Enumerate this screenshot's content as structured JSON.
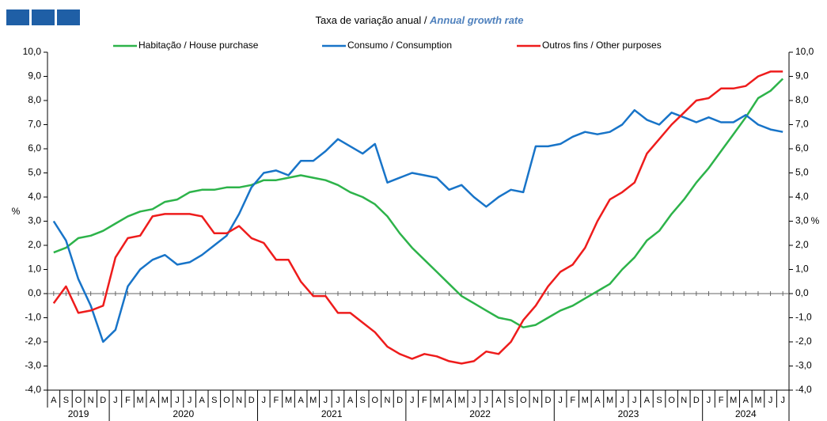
{
  "chart_data": {
    "type": "line",
    "title": "Taxa de variação anual / ",
    "title_en": "Annual growth rate",
    "ylabel": "%",
    "categories": [
      "A",
      "S",
      "O",
      "N",
      "D",
      "J",
      "F",
      "M",
      "A",
      "M",
      "J",
      "J",
      "A",
      "S",
      "O",
      "N",
      "D",
      "J",
      "F",
      "M",
      "A",
      "M",
      "J",
      "J",
      "A",
      "S",
      "O",
      "N",
      "D",
      "J",
      "F",
      "M",
      "A",
      "M",
      "J",
      "J",
      "A",
      "S",
      "O",
      "N",
      "D",
      "J",
      "F",
      "M",
      "A",
      "M",
      "J",
      "J",
      "A",
      "S",
      "O",
      "N",
      "D",
      "J",
      "F",
      "M",
      "A",
      "M",
      "J",
      "J"
    ],
    "years": [
      "2019",
      "2020",
      "2021",
      "2022",
      "2023",
      "2024"
    ],
    "ylim": [
      -4,
      10
    ],
    "yticks": [
      {
        "value": -4,
        "label": "-4,0"
      },
      {
        "value": -3,
        "label": "-3,0"
      },
      {
        "value": -2,
        "label": "-2,0"
      },
      {
        "value": -1,
        "label": "-1,0"
      },
      {
        "value": 0,
        "label": "0,0"
      },
      {
        "value": 1,
        "label": "1,0"
      },
      {
        "value": 2,
        "label": "2,0"
      },
      {
        "value": 3,
        "label": "3,0"
      },
      {
        "value": 4,
        "label": "4,0"
      },
      {
        "value": 5,
        "label": "5,0"
      },
      {
        "value": 6,
        "label": "6,0"
      },
      {
        "value": 7,
        "label": "7,0"
      },
      {
        "value": 8,
        "label": "8,0"
      },
      {
        "value": 9,
        "label": "9,0"
      },
      {
        "value": 10,
        "label": "10,0"
      }
    ],
    "legend": "top",
    "series": [
      {
        "name": "Habitação / House purchase",
        "color": "#2db34a",
        "values": [
          1.7,
          1.9,
          2.3,
          2.4,
          2.6,
          2.9,
          3.2,
          3.4,
          3.5,
          3.8,
          3.9,
          4.2,
          4.3,
          4.3,
          4.4,
          4.4,
          4.5,
          4.7,
          4.7,
          4.8,
          4.9,
          4.8,
          4.7,
          4.5,
          4.2,
          4.0,
          3.7,
          3.2,
          2.5,
          1.9,
          1.4,
          0.9,
          0.4,
          -0.1,
          -0.4,
          -0.7,
          -1.0,
          -1.1,
          -1.4,
          -1.3,
          -1.0,
          -0.7,
          -0.5,
          -0.2,
          0.1,
          0.4,
          1.0,
          1.5,
          2.2,
          2.6,
          3.3,
          3.9,
          4.6,
          5.2,
          5.9,
          6.6,
          7.3,
          8.1,
          8.4,
          8.9
        ]
      },
      {
        "name": "Consumo / Consumption",
        "color": "#1874c8",
        "values": [
          3.0,
          2.2,
          0.6,
          -0.5,
          -2.0,
          -1.5,
          0.3,
          1.0,
          1.4,
          1.6,
          1.2,
          1.3,
          1.6,
          2.0,
          2.4,
          3.3,
          4.4,
          5.0,
          5.1,
          4.9,
          5.5,
          5.5,
          5.9,
          6.4,
          6.1,
          5.8,
          6.2,
          4.6,
          4.8,
          5.0,
          4.9,
          4.8,
          4.3,
          4.5,
          4.0,
          3.6,
          4.0,
          4.3,
          4.2,
          6.1,
          6.1,
          6.2,
          6.5,
          6.7,
          6.6,
          6.7,
          7.0,
          7.6,
          7.2,
          7.0,
          7.5,
          7.3,
          7.1,
          7.3,
          7.1,
          7.1,
          7.4,
          7.0,
          6.8,
          6.7
        ]
      },
      {
        "name": "Outros fins / Other purposes",
        "color": "#ee1c1c",
        "values": [
          -0.4,
          0.3,
          -0.8,
          -0.7,
          -0.5,
          1.5,
          2.3,
          2.4,
          3.2,
          3.3,
          3.3,
          3.3,
          3.2,
          2.5,
          2.5,
          2.8,
          2.3,
          2.1,
          1.4,
          1.4,
          0.5,
          -0.1,
          -0.1,
          -0.8,
          -0.8,
          -1.2,
          -1.6,
          -2.2,
          -2.5,
          -2.7,
          -2.5,
          -2.6,
          -2.8,
          -2.9,
          -2.8,
          -2.4,
          -2.5,
          -2.0,
          -1.1,
          -0.5,
          0.3,
          0.9,
          1.2,
          1.9,
          3.0,
          3.9,
          4.2,
          4.6,
          5.8,
          6.4,
          7.0,
          7.5,
          8.0,
          8.1,
          8.5,
          8.5,
          8.6,
          9.0,
          9.2,
          9.2
        ]
      }
    ]
  }
}
